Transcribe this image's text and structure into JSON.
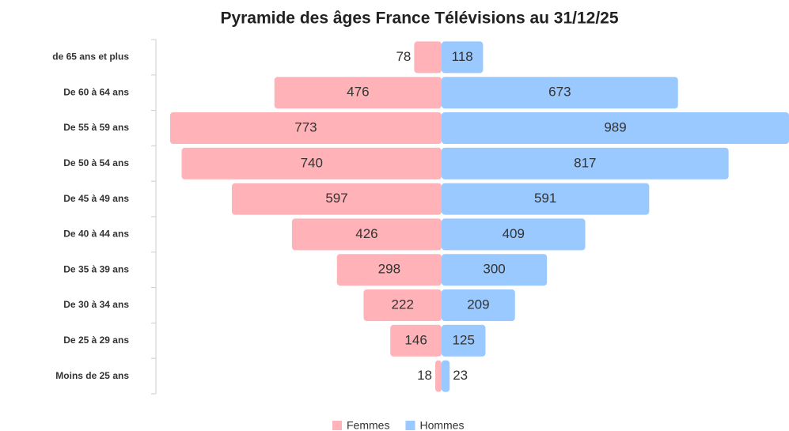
{
  "chart_data": {
    "type": "bar",
    "orientation": "horizontal",
    "title": "Pyramide des âges France Télévisions au 31/12/25",
    "categories": [
      "de 65 ans et plus",
      "De 60 à 64 ans",
      "De 55 à 59 ans",
      "De 50 à 54 ans",
      "De 45 à 49 ans",
      "De 40 à 44 ans",
      "De 35 à 39 ans",
      "De 30 à 34 ans",
      "De 25 à 29 ans",
      "Moins de 25 ans"
    ],
    "series": [
      {
        "name": "Femmes",
        "color": "#ffb3b8",
        "side": "left",
        "values": [
          78,
          476,
          773,
          740,
          597,
          426,
          298,
          222,
          146,
          18
        ]
      },
      {
        "name": "Hommes",
        "color": "#99c9ff",
        "side": "right",
        "values": [
          118,
          673,
          989,
          817,
          591,
          409,
          300,
          209,
          125,
          23
        ]
      }
    ],
    "legend": "bottom"
  }
}
